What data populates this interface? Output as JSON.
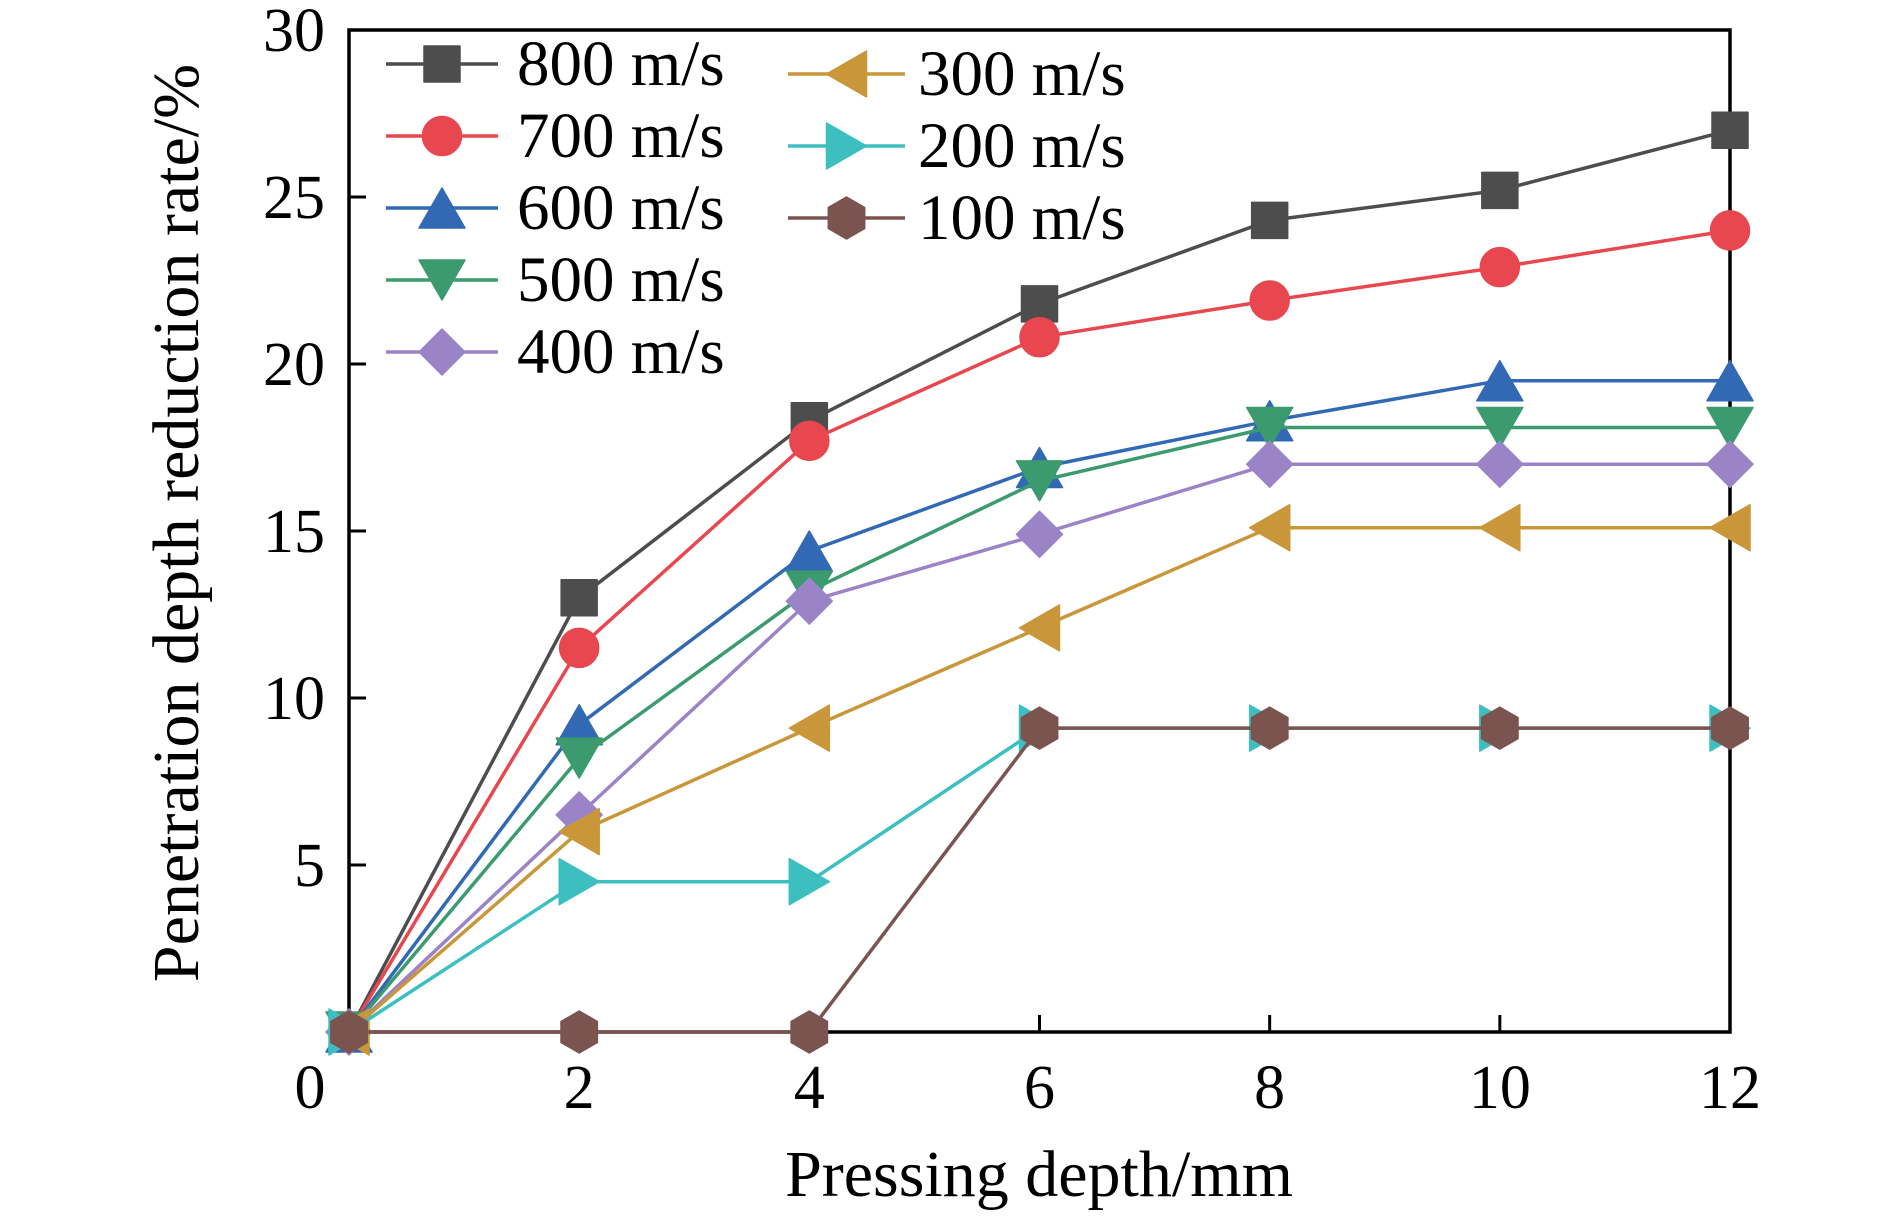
{
  "chart_data": {
    "type": "line",
    "xlabel": "Pressing depth/mm",
    "ylabel": "Penetration depth reduction rate/%",
    "origin_label": "0",
    "xlim": [
      0,
      12
    ],
    "ylim": [
      0,
      30
    ],
    "xticks": [
      2,
      4,
      6,
      8,
      10,
      12
    ],
    "yticks": [
      5,
      10,
      15,
      20,
      25,
      30
    ],
    "grid": false,
    "legend_position": "top-left",
    "x": [
      0,
      2,
      4,
      6,
      8,
      10,
      12
    ],
    "series": [
      {
        "name": "800 m/s",
        "color": "#4d4d4d",
        "marker": "square",
        "values": [
          0,
          13.0,
          18.3,
          21.8,
          24.3,
          25.2,
          27.0
        ]
      },
      {
        "name": "700 m/s",
        "color": "#e8474f",
        "marker": "circle",
        "values": [
          0,
          11.5,
          17.7,
          20.8,
          21.9,
          22.9,
          24.0
        ]
      },
      {
        "name": "600 m/s",
        "color": "#3169b5",
        "marker": "triangle-up",
        "values": [
          0,
          9.2,
          14.4,
          16.9,
          18.3,
          19.5,
          19.5
        ]
      },
      {
        "name": "500 m/s",
        "color": "#3b9a6e",
        "marker": "triangle-down",
        "values": [
          0,
          8.2,
          13.2,
          16.5,
          18.1,
          18.1,
          18.1
        ]
      },
      {
        "name": "400 m/s",
        "color": "#9b83c8",
        "marker": "diamond",
        "values": [
          0,
          6.5,
          12.9,
          14.9,
          17.0,
          17.0,
          17.0
        ]
      },
      {
        "name": "300 m/s",
        "color": "#c9963a",
        "marker": "triangle-left",
        "values": [
          0,
          6.0,
          9.1,
          12.1,
          15.1,
          15.1,
          15.1
        ]
      },
      {
        "name": "200 m/s",
        "color": "#3dbfbf",
        "marker": "triangle-right",
        "values": [
          0,
          4.5,
          4.5,
          9.1,
          9.1,
          9.1,
          9.1
        ]
      },
      {
        "name": "100 m/s",
        "color": "#7b5450",
        "marker": "hexagon",
        "values": [
          0,
          0,
          0,
          9.1,
          9.1,
          9.1,
          9.1
        ]
      }
    ]
  }
}
